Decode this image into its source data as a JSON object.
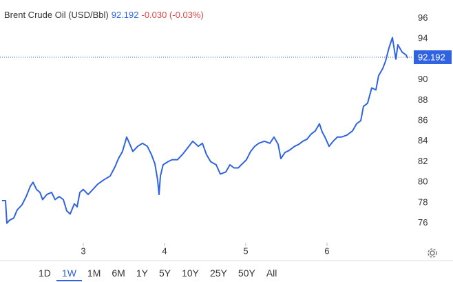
{
  "chart_data": {
    "type": "line",
    "title": "Brent Crude Oil (USD/Bbl)",
    "last_value": 92.192,
    "change": "-0.030 (-0.03%)",
    "x": [
      2.0,
      2.043,
      2.06,
      2.094,
      2.144,
      2.187,
      2.246,
      2.297,
      2.348,
      2.382,
      2.424,
      2.467,
      2.5,
      2.551,
      2.611,
      2.653,
      2.704,
      2.755,
      2.797,
      2.839,
      2.89,
      2.924,
      2.958,
      3.0,
      3.06,
      3.119,
      3.178,
      3.246,
      3.331,
      3.39,
      3.433,
      3.483,
      3.534,
      3.568,
      3.611,
      3.67,
      3.729,
      3.789,
      3.839,
      3.882,
      3.916,
      3.933,
      3.95,
      3.983,
      4.043,
      4.094,
      4.161,
      4.221,
      4.28,
      4.348,
      4.416,
      4.467,
      4.517,
      4.568,
      4.636,
      4.687,
      4.755,
      4.806,
      4.856,
      4.907,
      4.958,
      5.009,
      5.06,
      5.111,
      5.161,
      5.229,
      5.297,
      5.348,
      5.399,
      5.433,
      5.484,
      5.534,
      5.602,
      5.653,
      5.704,
      5.755,
      5.806,
      5.856,
      5.907,
      5.941,
      5.975,
      6.026,
      6.077,
      6.128,
      6.178,
      6.246,
      6.314,
      6.365,
      6.416,
      6.45,
      6.5,
      6.551,
      6.602,
      6.636,
      6.687,
      6.721,
      6.763,
      6.806,
      6.848,
      6.873,
      6.924,
      6.975,
      6.992
    ],
    "series": [
      {
        "color": "#2f63e0",
        "values": [
          78.2,
          78.2,
          76.0,
          76.3,
          76.5,
          77.3,
          77.8,
          78.6,
          79.6,
          80.0,
          79.3,
          79.0,
          78.3,
          78.8,
          79.0,
          78.3,
          78.6,
          78.3,
          77.2,
          76.9,
          77.9,
          77.6,
          79.0,
          79.3,
          78.8,
          79.3,
          79.8,
          80.2,
          80.6,
          81.5,
          82.3,
          83.0,
          84.4,
          83.8,
          83.0,
          83.5,
          83.8,
          83.5,
          82.7,
          81.8,
          80.2,
          78.8,
          80.6,
          81.7,
          82.0,
          82.2,
          82.2,
          82.7,
          83.3,
          84.0,
          83.5,
          83.8,
          82.7,
          82.0,
          81.7,
          80.8,
          81.0,
          81.7,
          81.4,
          81.4,
          81.8,
          82.2,
          83.0,
          83.5,
          83.8,
          84.0,
          83.8,
          84.4,
          83.7,
          82.3,
          82.9,
          83.1,
          83.5,
          83.7,
          84.0,
          84.2,
          84.7,
          85.0,
          85.7,
          84.9,
          84.4,
          83.5,
          84.0,
          84.4,
          84.4,
          84.6,
          85.0,
          85.7,
          86.0,
          87.4,
          87.7,
          89.2,
          89.0,
          90.4,
          91.1,
          91.8,
          93.1,
          94.1,
          92.0,
          93.4,
          92.7,
          92.4,
          92.1
        ]
      }
    ],
    "xlim": [
      1.975,
      7.06
    ],
    "xticks": [
      3,
      4,
      5,
      6
    ],
    "ylim": [
      74.1,
      97.1
    ],
    "yticks": [
      76,
      78,
      80,
      82,
      84,
      86,
      88,
      90,
      92,
      94,
      96
    ],
    "ranges": [
      "1D",
      "1W",
      "1M",
      "6M",
      "1Y",
      "5Y",
      "10Y",
      "25Y",
      "50Y",
      "All"
    ],
    "active_range": "1W"
  }
}
